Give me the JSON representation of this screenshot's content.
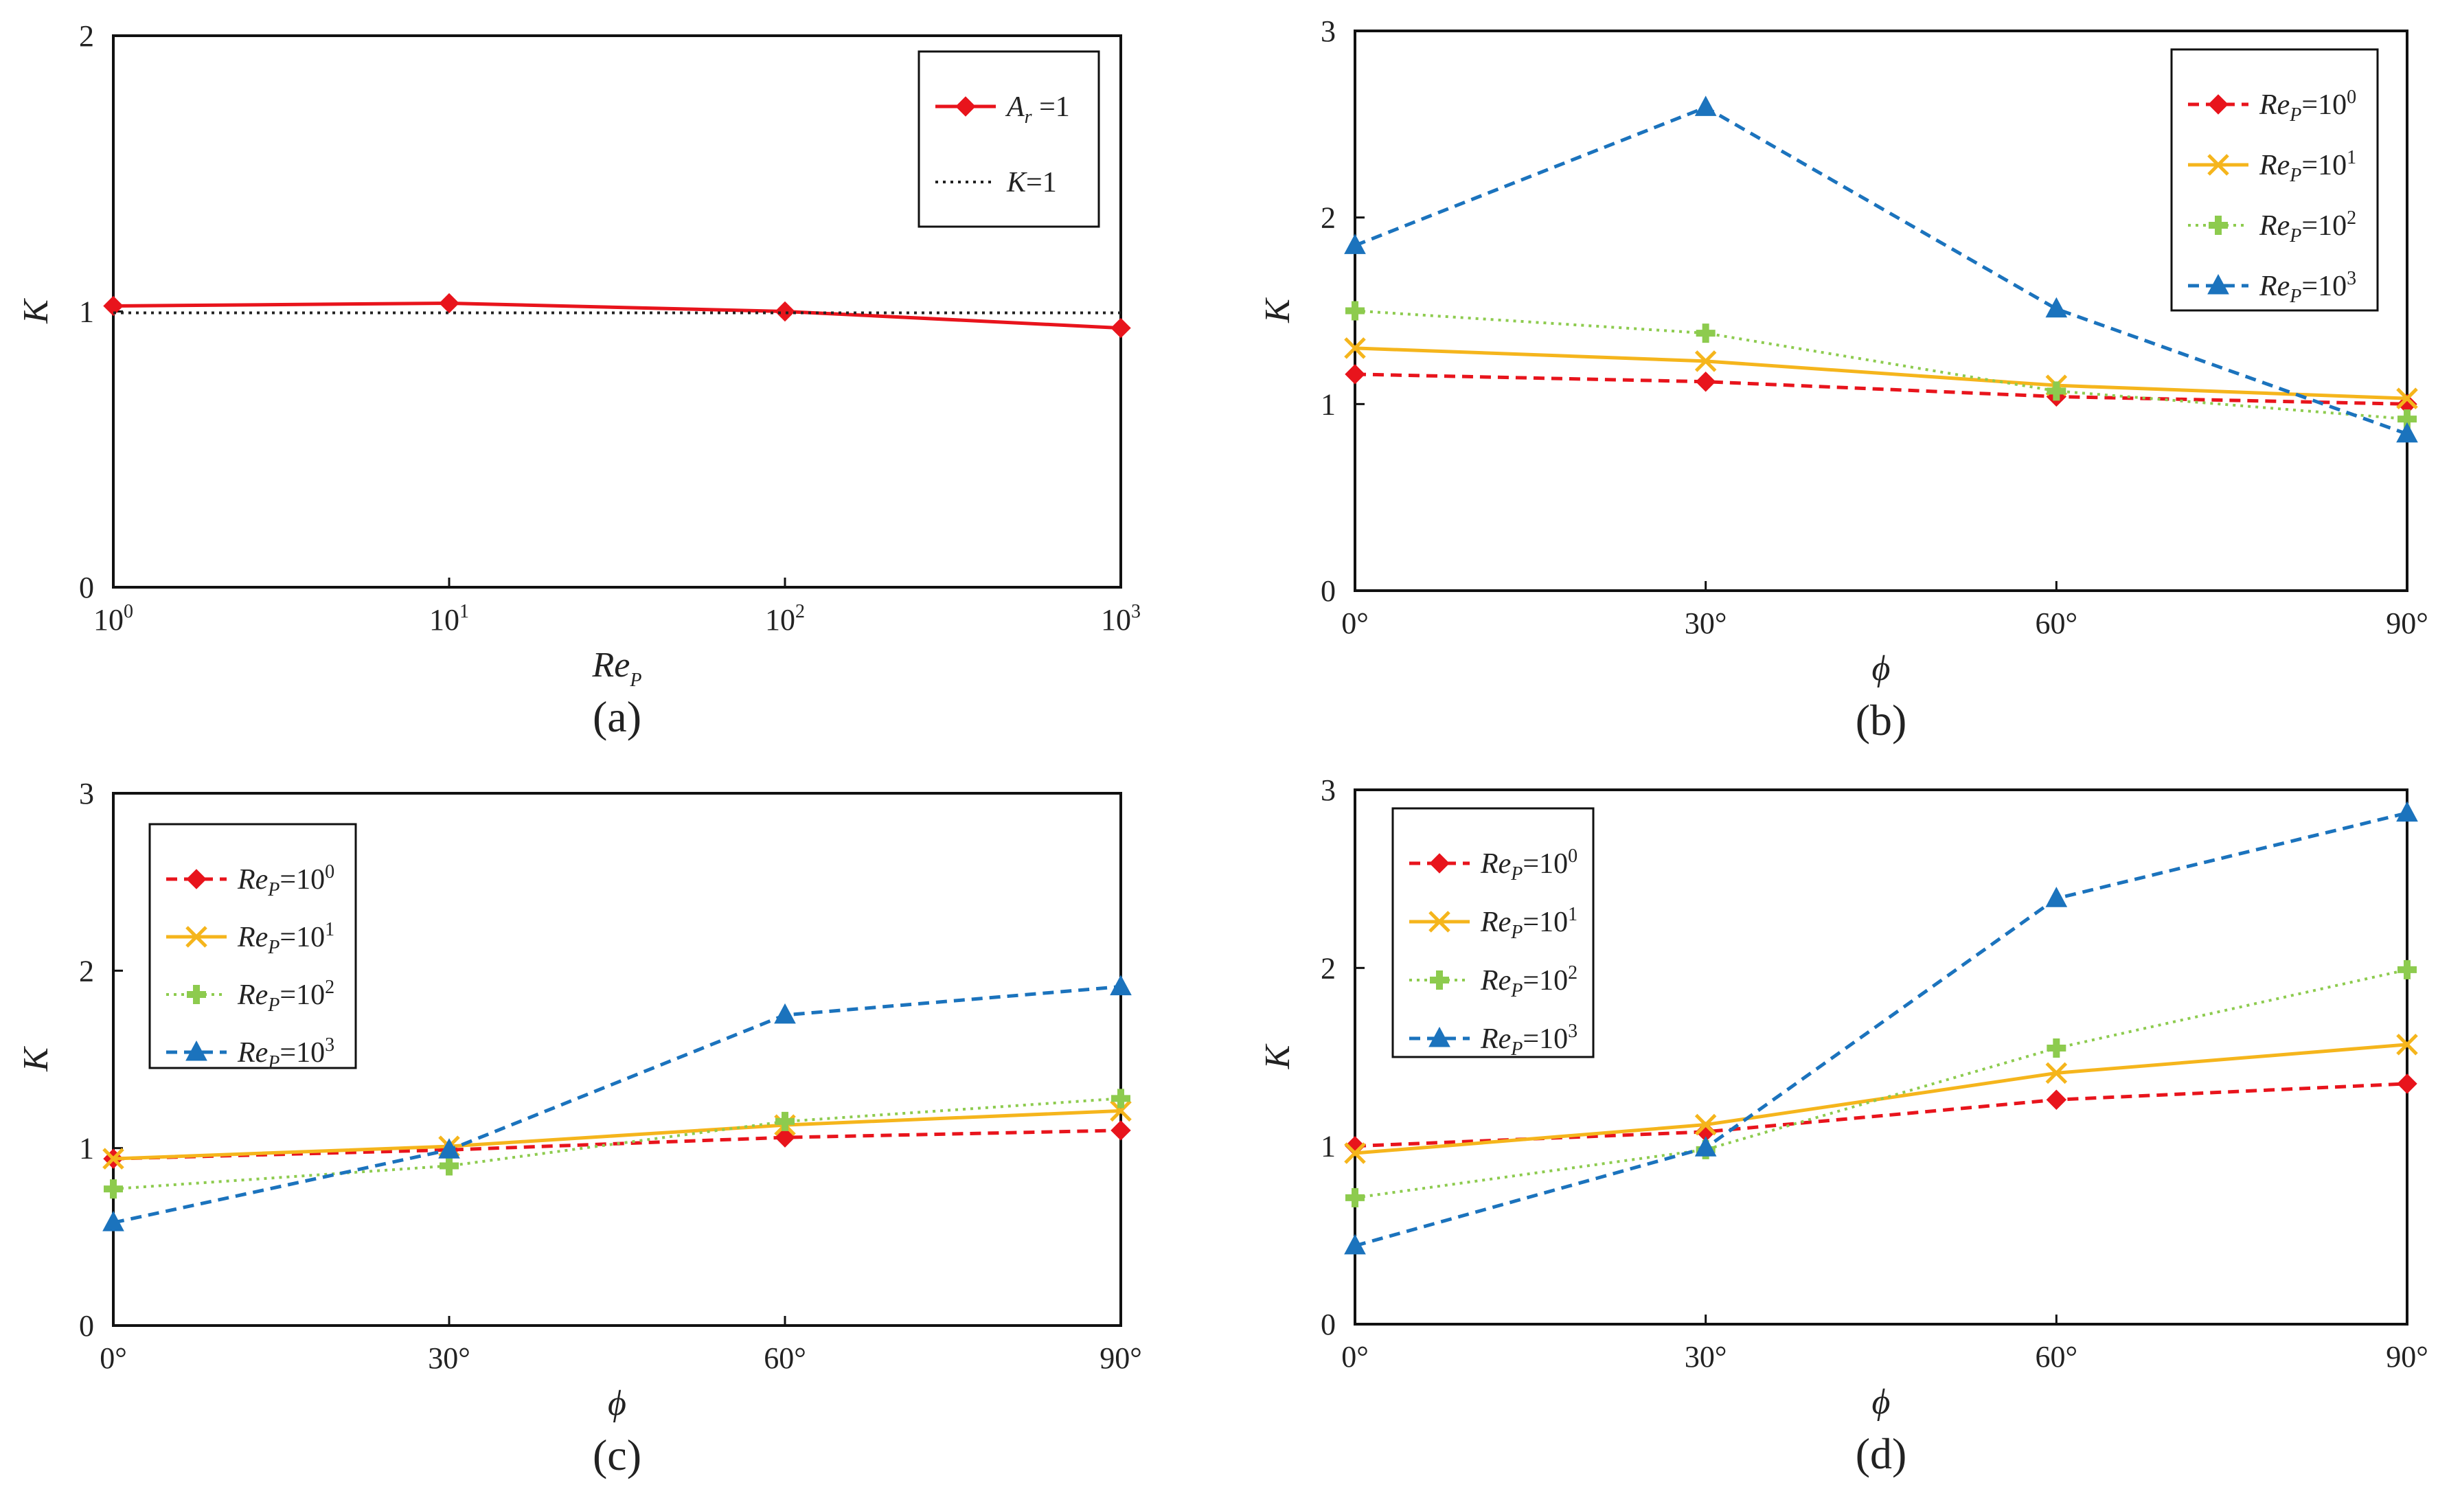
{
  "chart_data": [
    {
      "id": "a",
      "type": "line",
      "caption": "(a)",
      "xlabel": "Re",
      "xlabel_sub": "P",
      "ylabel": "K",
      "x_scale": "log",
      "xlim": [
        1,
        1000
      ],
      "ylim": [
        0,
        2
      ],
      "xticks": [
        {
          "value": 1,
          "base": "10",
          "exp": "0"
        },
        {
          "value": 10,
          "base": "10",
          "exp": "1"
        },
        {
          "value": 100,
          "base": "10",
          "exp": "2"
        },
        {
          "value": 1000,
          "base": "10",
          "exp": "3"
        }
      ],
      "yticks": [
        {
          "value": 0,
          "label": "0"
        },
        {
          "value": 1,
          "label": "1"
        },
        {
          "value": 2,
          "label": "2"
        }
      ],
      "legend_position": "top-right",
      "series": [
        {
          "name": "A_r =1",
          "label_main": "A",
          "label_sub": "r",
          "label_rest": " =1",
          "color": "#e8141c",
          "dash": "solid",
          "marker": "diamond",
          "x": [
            1,
            10,
            100,
            1000
          ],
          "values": [
            1.02,
            1.03,
            1.0,
            0.94
          ]
        },
        {
          "name": "K=1",
          "label_main": "K",
          "label_sub": "",
          "label_rest": "=1",
          "color": "#222222",
          "dash": "dot",
          "marker": "none",
          "x": [
            1,
            1000
          ],
          "values": [
            0.995,
            0.995
          ]
        }
      ]
    },
    {
      "id": "b",
      "type": "line",
      "caption": "(b)",
      "xlabel": "ϕ",
      "xlabel_sub": "",
      "ylabel": "K",
      "x_scale": "linear",
      "xlim": [
        0,
        90
      ],
      "ylim": [
        0,
        3
      ],
      "xticks": [
        {
          "value": 0,
          "label": "0°"
        },
        {
          "value": 30,
          "label": "30°"
        },
        {
          "value": 60,
          "label": "60°"
        },
        {
          "value": 90,
          "label": "90°"
        }
      ],
      "yticks": [
        {
          "value": 0,
          "label": "0"
        },
        {
          "value": 1,
          "label": "1"
        },
        {
          "value": 2,
          "label": "2"
        },
        {
          "value": 3,
          "label": "3"
        }
      ],
      "legend_position": "top-right",
      "series": [
        {
          "name": "Re_P=10^0",
          "exp": "0",
          "color": "#e8141c",
          "dash": "dash",
          "marker": "diamond",
          "x": [
            0,
            30,
            60,
            90
          ],
          "values": [
            1.16,
            1.12,
            1.04,
            1.0
          ]
        },
        {
          "name": "Re_P=10^1",
          "exp": "1",
          "color": "#f5b51c",
          "dash": "solid",
          "marker": "x",
          "x": [
            0,
            30,
            60,
            90
          ],
          "values": [
            1.3,
            1.23,
            1.1,
            1.03
          ]
        },
        {
          "name": "Re_P=10^2",
          "exp": "2",
          "color": "#8dcb4e",
          "dash": "dot",
          "marker": "plus",
          "x": [
            0,
            30,
            60,
            90
          ],
          "values": [
            1.5,
            1.38,
            1.07,
            0.92
          ]
        },
        {
          "name": "Re_P=10^3",
          "exp": "3",
          "color": "#1b73bd",
          "dash": "dash",
          "marker": "triangle",
          "x": [
            0,
            30,
            60,
            90
          ],
          "values": [
            1.85,
            2.59,
            1.51,
            0.84
          ]
        }
      ]
    },
    {
      "id": "c",
      "type": "line",
      "caption": "(c)",
      "xlabel": "ϕ",
      "xlabel_sub": "",
      "ylabel": "K",
      "x_scale": "linear",
      "xlim": [
        0,
        90
      ],
      "ylim": [
        0,
        3
      ],
      "xticks": [
        {
          "value": 0,
          "label": "0°"
        },
        {
          "value": 30,
          "label": "30°"
        },
        {
          "value": 60,
          "label": "60°"
        },
        {
          "value": 90,
          "label": "90°"
        }
      ],
      "yticks": [
        {
          "value": 0,
          "label": "0"
        },
        {
          "value": 1,
          "label": "1"
        },
        {
          "value": 2,
          "label": "2"
        },
        {
          "value": 3,
          "label": "3"
        }
      ],
      "legend_position": "top-left",
      "series": [
        {
          "name": "Re_P=10^0",
          "exp": "0",
          "color": "#e8141c",
          "dash": "dash",
          "marker": "diamond",
          "x": [
            0,
            30,
            60,
            90
          ],
          "values": [
            0.94,
            0.99,
            1.06,
            1.1
          ]
        },
        {
          "name": "Re_P=10^1",
          "exp": "1",
          "color": "#f5b51c",
          "dash": "solid",
          "marker": "x",
          "x": [
            0,
            30,
            60,
            90
          ],
          "values": [
            0.94,
            1.01,
            1.13,
            1.21
          ]
        },
        {
          "name": "Re_P=10^2",
          "exp": "2",
          "color": "#8dcb4e",
          "dash": "dot",
          "marker": "plus",
          "x": [
            0,
            30,
            60,
            90
          ],
          "values": [
            0.77,
            0.9,
            1.15,
            1.28
          ]
        },
        {
          "name": "Re_P=10^3",
          "exp": "3",
          "color": "#1b73bd",
          "dash": "dash",
          "marker": "triangle",
          "x": [
            0,
            30,
            60,
            90
          ],
          "values": [
            0.58,
            0.99,
            1.75,
            1.91
          ]
        }
      ]
    },
    {
      "id": "d",
      "type": "line",
      "caption": "(d)",
      "xlabel": "ϕ",
      "xlabel_sub": "",
      "ylabel": "K",
      "x_scale": "linear",
      "xlim": [
        0,
        90
      ],
      "ylim": [
        0,
        3
      ],
      "xticks": [
        {
          "value": 0,
          "label": "0°"
        },
        {
          "value": 30,
          "label": "30°"
        },
        {
          "value": 60,
          "label": "60°"
        },
        {
          "value": 90,
          "label": "90°"
        }
      ],
      "yticks": [
        {
          "value": 0,
          "label": "0"
        },
        {
          "value": 1,
          "label": "1"
        },
        {
          "value": 2,
          "label": "2"
        },
        {
          "value": 3,
          "label": "3"
        }
      ],
      "legend_position": "top-left",
      "series": [
        {
          "name": "Re_P=10^0",
          "exp": "0",
          "color": "#e8141c",
          "dash": "dash",
          "marker": "diamond",
          "x": [
            0,
            30,
            60,
            90
          ],
          "values": [
            1.0,
            1.08,
            1.26,
            1.35
          ]
        },
        {
          "name": "Re_P=10^1",
          "exp": "1",
          "color": "#f5b51c",
          "dash": "solid",
          "marker": "x",
          "x": [
            0,
            30,
            60,
            90
          ],
          "values": [
            0.96,
            1.12,
            1.41,
            1.57
          ]
        },
        {
          "name": "Re_P=10^2",
          "exp": "2",
          "color": "#8dcb4e",
          "dash": "dot",
          "marker": "plus",
          "x": [
            0,
            30,
            60,
            90
          ],
          "values": [
            0.71,
            0.98,
            1.55,
            1.99
          ]
        },
        {
          "name": "Re_P=10^3",
          "exp": "3",
          "color": "#1b73bd",
          "dash": "dash",
          "marker": "triangle",
          "x": [
            0,
            30,
            60,
            90
          ],
          "values": [
            0.44,
            0.99,
            2.39,
            2.87
          ]
        }
      ]
    }
  ]
}
